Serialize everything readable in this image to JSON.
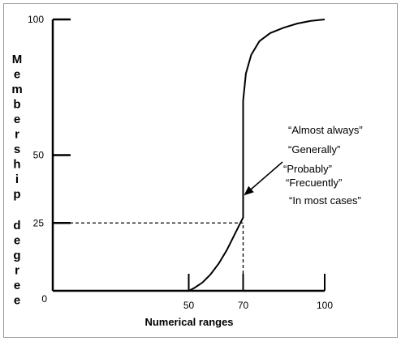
{
  "chart_data": {
    "type": "line",
    "title": "",
    "xlabel": "Numerical ranges",
    "ylabel": "Membership degree",
    "xlim": [
      0,
      100
    ],
    "ylim": [
      0,
      100
    ],
    "x_ticks": [
      "0",
      "50",
      "70",
      "100"
    ],
    "y_ticks": [
      "0",
      "25",
      "50",
      "100"
    ],
    "grid": false,
    "series": [
      {
        "x": [
          50,
          52,
          55,
          58,
          61,
          64,
          67,
          69,
          70,
          70,
          70,
          71,
          73,
          76,
          80,
          85,
          90,
          95,
          100
        ],
        "y": [
          0,
          1,
          3,
          6,
          10,
          15,
          21,
          25,
          27,
          50,
          70,
          80,
          87,
          92,
          95,
          97,
          98.5,
          99.5,
          100
        ]
      }
    ],
    "reference_lines": [
      {
        "from": [
          0,
          25
        ],
        "to": [
          70,
          25
        ],
        "style": "dashed"
      },
      {
        "from": [
          70,
          0
        ],
        "to": [
          70,
          25
        ],
        "style": "dashed"
      }
    ],
    "annotations": [
      "“Almost always”",
      "“Generally”",
      "“Probably”",
      "“Frecuently”",
      "“In most cases”"
    ],
    "annotation_arrow_target": [
      70,
      36
    ]
  }
}
